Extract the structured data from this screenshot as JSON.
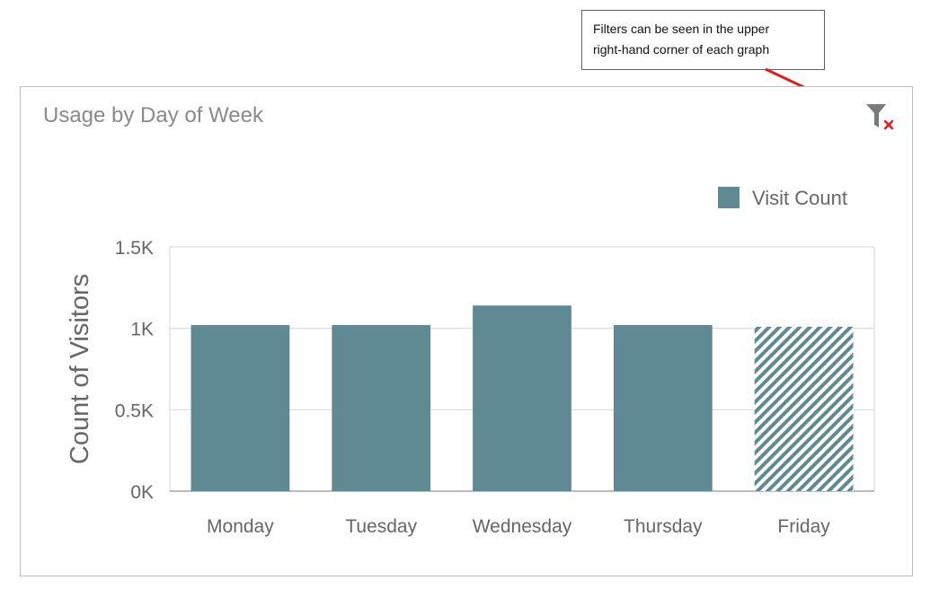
{
  "callout": {
    "line1": "Filters can be seen in the upper",
    "line2": "right-hand corner of each graph",
    "border_color": "#c0392b",
    "arrow_color": "#e8191d"
  },
  "panel": {
    "title": "Usage by Day of Week",
    "filter_icon": "filter-clear-icon"
  },
  "chart_data": {
    "type": "bar",
    "title": "Usage by Day of Week",
    "xlabel": "",
    "ylabel": "Count of Visitors",
    "categories": [
      "Monday",
      "Tuesday",
      "Wednesday",
      "Thursday",
      "Friday"
    ],
    "series": [
      {
        "name": "Visit Count",
        "values": [
          1020,
          1020,
          1140,
          1020,
          1010
        ]
      }
    ],
    "highlighted": [
      "Monday",
      "Tuesday",
      "Wednesday",
      "Thursday"
    ],
    "filtered_out": [
      "Friday"
    ],
    "ylim": [
      0,
      1500
    ],
    "yticks": [
      0,
      500,
      1000,
      1500
    ],
    "ytick_labels": [
      "0K",
      "0.5K",
      "1K",
      "1.5K"
    ],
    "grid": true,
    "legend_position": "top-right",
    "bar_color": "#5f8a93"
  }
}
